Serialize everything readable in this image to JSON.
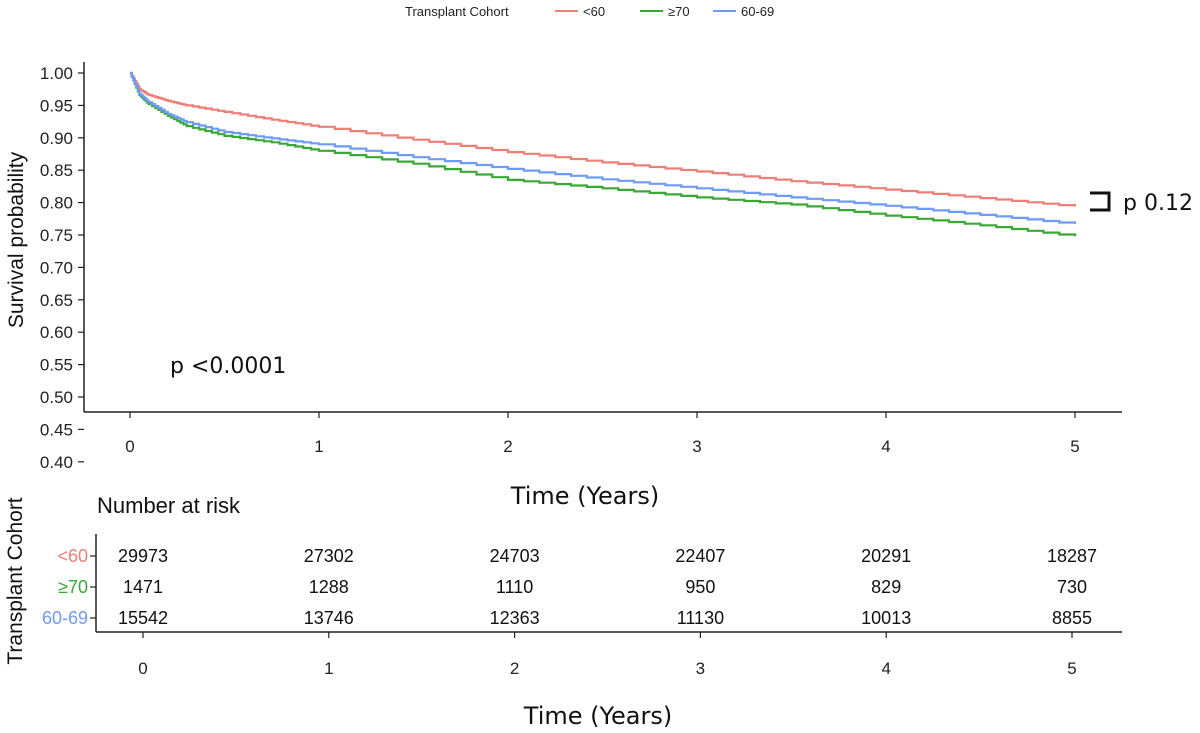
{
  "legend": {
    "title": "Transplant Cohort",
    "items": [
      {
        "label": "<60",
        "color": "#ee7f77"
      },
      {
        "label": "≥70",
        "color": "#3aa835"
      },
      {
        "label": "60-69",
        "color": "#6e9bf5"
      }
    ]
  },
  "chart_data": [
    {
      "type": "line",
      "ylabel": "Survival probability",
      "xlabel": "Time (Years)",
      "xlim": [
        0,
        5
      ],
      "ylim": [
        0.38,
        1.0
      ],
      "yticks": [
        "1.00",
        "0.95",
        "0.90",
        "0.85",
        "0.80",
        "0.75",
        "0.70",
        "0.65",
        "0.60",
        "0.55",
        "0.50",
        "0.45",
        "0.40"
      ],
      "xticks": [
        "0",
        "1",
        "2",
        "3",
        "4",
        "5"
      ],
      "grid": false,
      "legend_position": "top",
      "series": [
        {
          "name": "<60",
          "color": "#ee7f77",
          "x": [
            0,
            0.05,
            0.1,
            0.2,
            0.3,
            0.5,
            0.75,
            1,
            1.5,
            2,
            2.5,
            3,
            3.5,
            4,
            4.5,
            5
          ],
          "y": [
            1.0,
            0.975,
            0.966,
            0.957,
            0.95,
            0.94,
            0.928,
            0.917,
            0.897,
            0.878,
            0.862,
            0.848,
            0.833,
            0.82,
            0.807,
            0.794
          ]
        },
        {
          "name": "≥70",
          "color": "#3aa835",
          "x": [
            0,
            0.05,
            0.1,
            0.2,
            0.3,
            0.5,
            0.75,
            1,
            1.5,
            2,
            2.5,
            3,
            3.5,
            4,
            4.5,
            5
          ],
          "y": [
            1.0,
            0.966,
            0.952,
            0.934,
            0.918,
            0.903,
            0.893,
            0.88,
            0.86,
            0.835,
            0.822,
            0.808,
            0.797,
            0.78,
            0.765,
            0.748
          ]
        },
        {
          "name": "60-69",
          "color": "#6e9bf5",
          "x": [
            0,
            0.05,
            0.1,
            0.2,
            0.3,
            0.5,
            0.75,
            1,
            1.5,
            2,
            2.5,
            3,
            3.5,
            4,
            4.5,
            5
          ],
          "y": [
            1.0,
            0.968,
            0.955,
            0.937,
            0.924,
            0.909,
            0.899,
            0.89,
            0.87,
            0.852,
            0.836,
            0.822,
            0.808,
            0.795,
            0.781,
            0.767
          ]
        }
      ],
      "annotations": [
        "p <0.0001",
        "p 0.12"
      ]
    },
    {
      "type": "table",
      "title": "Number at risk",
      "ylabel": "Transplant Cohort",
      "xlabel": "Time (Years)",
      "xticks": [
        "0",
        "1",
        "2",
        "3",
        "4",
        "5"
      ],
      "rows": [
        {
          "label": "<60",
          "color": "#ee7f77",
          "values": [
            "29973",
            "27302",
            "24703",
            "22407",
            "20291",
            "18287"
          ]
        },
        {
          "label": "≥70",
          "color": "#3aa835",
          "values": [
            "1471",
            "1288",
            "1110",
            "950",
            "829",
            "730"
          ]
        },
        {
          "label": "60-69",
          "color": "#6e9bf5",
          "values": [
            "15542",
            "13746",
            "12363",
            "11130",
            "10013",
            "8855"
          ]
        }
      ]
    }
  ]
}
